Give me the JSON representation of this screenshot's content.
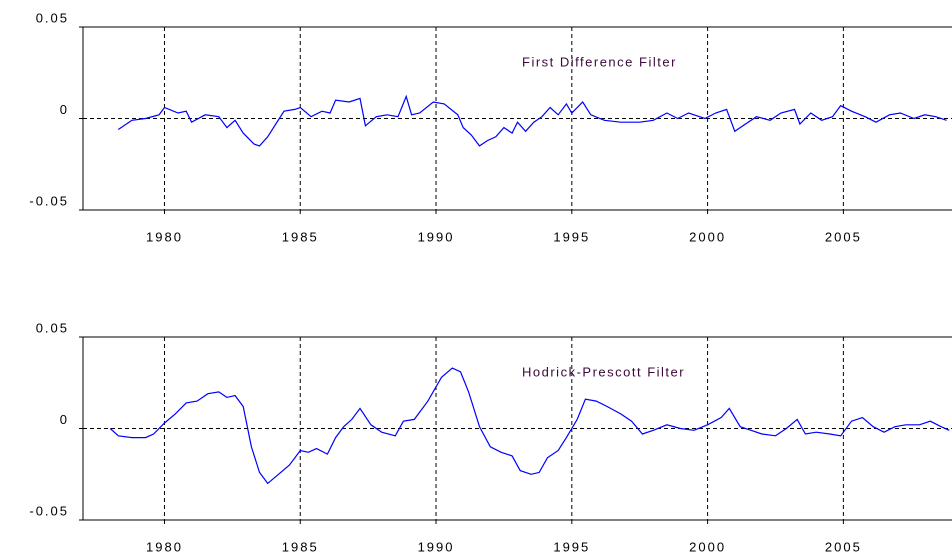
{
  "chart_data": [
    {
      "type": "line",
      "annotation": "First Difference Filter",
      "color": "#0000ff",
      "x": [
        1978.3,
        1978.8,
        1979.3,
        1979.8,
        1980.0,
        1980.5,
        1980.8,
        1981.0,
        1981.5,
        1982.0,
        1982.3,
        1982.6,
        1982.9,
        1983.3,
        1983.5,
        1983.8,
        1984.1,
        1984.4,
        1984.8,
        1985.0,
        1985.4,
        1985.8,
        1986.1,
        1986.3,
        1986.8,
        1987.2,
        1987.4,
        1987.8,
        1988.2,
        1988.6,
        1988.9,
        1989.1,
        1989.4,
        1989.9,
        1990.3,
        1990.8,
        1991.0,
        1991.3,
        1991.6,
        1991.9,
        1992.2,
        1992.5,
        1992.8,
        1993.0,
        1993.3,
        1993.6,
        1993.9,
        1994.2,
        1994.5,
        1994.8,
        1995.0,
        1995.4,
        1995.7,
        1996.2,
        1996.8,
        1997.5,
        1998.0,
        1998.5,
        1998.9,
        1999.3,
        1999.9,
        2000.3,
        2000.7,
        2001.0,
        2001.3,
        2001.8,
        2002.3,
        2002.7,
        2003.2,
        2003.4,
        2003.8,
        2004.2,
        2004.6,
        2004.9,
        2005.3,
        2005.8,
        2006.2,
        2006.7,
        2007.1,
        2007.6,
        2008.0,
        2008.4,
        2008.8
      ],
      "values": [
        -0.006,
        -0.001,
        0.0,
        0.002,
        0.006,
        0.003,
        0.004,
        -0.002,
        0.002,
        0.001,
        -0.005,
        -0.001,
        -0.008,
        -0.014,
        -0.015,
        -0.01,
        -0.003,
        0.004,
        0.005,
        0.006,
        0.001,
        0.004,
        0.003,
        0.01,
        0.009,
        0.011,
        -0.004,
        0.001,
        0.002,
        0.001,
        0.012,
        0.002,
        0.003,
        0.009,
        0.008,
        0.002,
        -0.005,
        -0.009,
        -0.015,
        -0.012,
        -0.01,
        -0.005,
        -0.008,
        -0.002,
        -0.007,
        -0.002,
        0.001,
        0.006,
        0.002,
        0.008,
        0.003,
        0.009,
        0.002,
        -0.001,
        -0.002,
        -0.002,
        -0.001,
        0.003,
        0.0,
        0.003,
        0.0,
        0.003,
        0.005,
        -0.007,
        -0.004,
        0.001,
        -0.001,
        0.003,
        0.005,
        -0.003,
        0.003,
        -0.001,
        0.001,
        0.007,
        0.004,
        0.001,
        -0.002,
        0.002,
        0.003,
        0.0,
        0.002,
        0.001,
        -0.001
      ],
      "xlim": [
        1977,
        2009
      ],
      "xticks": [
        1980,
        1985,
        1990,
        1995,
        2000,
        2005
      ],
      "ylim": [
        -0.05,
        0.05
      ],
      "yticks": [
        0.05,
        0,
        -0.05
      ],
      "xgrid": true,
      "zero_line": true
    },
    {
      "type": "line",
      "annotation": "Hodrick-Prescott Filter",
      "color": "#0000ff",
      "x": [
        1978.0,
        1978.3,
        1978.8,
        1979.3,
        1979.6,
        1980.0,
        1980.4,
        1980.8,
        1981.2,
        1981.6,
        1982.0,
        1982.3,
        1982.6,
        1982.9,
        1983.2,
        1983.5,
        1983.8,
        1984.2,
        1984.6,
        1985.0,
        1985.3,
        1985.6,
        1986.0,
        1986.3,
        1986.6,
        1986.9,
        1987.2,
        1987.6,
        1988.0,
        1988.5,
        1988.8,
        1989.2,
        1989.7,
        1990.2,
        1990.6,
        1990.9,
        1991.2,
        1991.6,
        1992.0,
        1992.4,
        1992.8,
        1993.1,
        1993.5,
        1993.8,
        1994.1,
        1994.5,
        1994.8,
        1995.2,
        1995.5,
        1995.9,
        1996.3,
        1996.8,
        1997.2,
        1997.6,
        1998.0,
        1998.5,
        1999.0,
        1999.5,
        2000.0,
        2000.5,
        2000.8,
        2001.2,
        2001.6,
        2002.0,
        2002.5,
        2002.9,
        2003.3,
        2003.6,
        2004.0,
        2004.5,
        2004.9,
        2005.3,
        2005.7,
        2006.1,
        2006.5,
        2006.9,
        2007.3,
        2007.8,
        2008.2,
        2008.6,
        2008.9
      ],
      "values": [
        0.0,
        -0.004,
        -0.005,
        -0.005,
        -0.003,
        0.003,
        0.008,
        0.014,
        0.015,
        0.019,
        0.02,
        0.017,
        0.018,
        0.012,
        -0.01,
        -0.024,
        -0.03,
        -0.025,
        -0.02,
        -0.012,
        -0.013,
        -0.011,
        -0.014,
        -0.005,
        0.001,
        0.005,
        0.011,
        0.002,
        -0.002,
        -0.004,
        0.004,
        0.005,
        0.015,
        0.028,
        0.033,
        0.031,
        0.02,
        0.001,
        -0.01,
        -0.013,
        -0.015,
        -0.023,
        -0.025,
        -0.024,
        -0.016,
        -0.012,
        -0.005,
        0.005,
        0.016,
        0.015,
        0.012,
        0.008,
        0.004,
        -0.003,
        -0.001,
        0.002,
        0.0,
        -0.001,
        0.002,
        0.006,
        0.011,
        0.001,
        -0.001,
        -0.003,
        -0.004,
        0.0,
        0.005,
        -0.003,
        -0.002,
        -0.003,
        -0.004,
        0.004,
        0.006,
        0.001,
        -0.002,
        0.001,
        0.002,
        0.002,
        0.004,
        0.001,
        -0.001
      ],
      "xlim": [
        1977,
        2009
      ],
      "xticks": [
        1980,
        1985,
        1990,
        1995,
        2000,
        2005
      ],
      "ylim": [
        -0.05,
        0.05
      ],
      "yticks": [
        0.05,
        0,
        -0.05
      ],
      "xgrid": true,
      "zero_line": true
    }
  ]
}
